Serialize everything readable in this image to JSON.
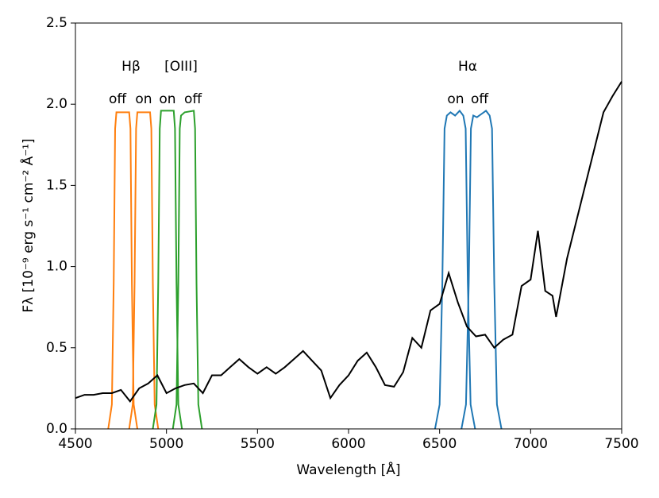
{
  "chart_data": {
    "type": "line",
    "xlabel": "Wavelength [Å]",
    "ylabel": "Fλ [10⁻⁹ erg s⁻¹ cm⁻² Å⁻¹]",
    "annotations": [
      "Hβ",
      "[OIII]",
      "Hα",
      "off",
      "on",
      "on",
      "off",
      "on",
      "off"
    ],
    "xlim": [
      4500,
      7500
    ],
    "xticks": [
      4500,
      5000,
      5500,
      6000,
      6500,
      7000,
      7500
    ],
    "ylim": [
      0,
      2.5
    ],
    "yticks": [
      {
        "value": 0,
        "label": "0.0"
      },
      0.5,
      {
        "value": 1,
        "label": "1.0"
      },
      1.5,
      {
        "value": 2,
        "label": "2.0"
      },
      2.5
    ],
    "series": [
      {
        "color": "#ff7f0e",
        "x": [
          4680,
          4700,
          4710,
          4718,
          4725,
          4795,
          4802,
          4810,
          4820,
          4840
        ],
        "values": [
          0,
          0.15,
          0.9,
          1.85,
          1.95,
          1.95,
          1.85,
          0.9,
          0.15,
          0
        ]
      },
      {
        "color": "#ff7f0e",
        "x": [
          4795,
          4815,
          4825,
          4833,
          4840,
          4910,
          4917,
          4925,
          4935,
          4955
        ],
        "values": [
          0,
          0.15,
          0.9,
          1.85,
          1.95,
          1.95,
          1.85,
          0.9,
          0.15,
          0
        ]
      },
      {
        "color": "#2ca02c",
        "x": [
          4925,
          4945,
          4955,
          4963,
          4970,
          5040,
          5047,
          5055,
          5065,
          5085
        ],
        "values": [
          0,
          0.15,
          0.9,
          1.85,
          1.96,
          1.96,
          1.85,
          0.9,
          0.15,
          0
        ]
      },
      {
        "color": "#2ca02c",
        "x": [
          5035,
          5055,
          5065,
          5073,
          5080,
          5100,
          5150,
          5157,
          5165,
          5175,
          5195
        ],
        "values": [
          0,
          0.15,
          0.9,
          1.85,
          1.93,
          1.95,
          1.96,
          1.85,
          0.9,
          0.15,
          0
        ]
      },
      {
        "color": "#1f77b4",
        "x": [
          6475,
          6500,
          6515,
          6527,
          6540,
          6560,
          6585,
          6610,
          6630,
          6643,
          6655,
          6670,
          6695
        ],
        "values": [
          0,
          0.15,
          0.9,
          1.85,
          1.93,
          1.95,
          1.93,
          1.96,
          1.93,
          1.85,
          0.9,
          0.15,
          0
        ]
      },
      {
        "color": "#1f77b4",
        "x": [
          6620,
          6645,
          6660,
          6672,
          6685,
          6705,
          6730,
          6755,
          6775,
          6788,
          6800,
          6815,
          6840
        ],
        "values": [
          0,
          0.15,
          0.9,
          1.85,
          1.93,
          1.92,
          1.94,
          1.96,
          1.93,
          1.85,
          0.9,
          0.15,
          0
        ]
      },
      {
        "color": "#000000",
        "x": [
          4500,
          4550,
          4600,
          4650,
          4700,
          4750,
          4800,
          4850,
          4900,
          4950,
          5000,
          5050,
          5100,
          5150,
          5200,
          5250,
          5300,
          5350,
          5400,
          5450,
          5500,
          5550,
          5600,
          5650,
          5700,
          5750,
          5800,
          5850,
          5900,
          5950,
          6000,
          6050,
          6100,
          6150,
          6200,
          6250,
          6300,
          6350,
          6400,
          6450,
          6500,
          6550,
          6600,
          6650,
          6700,
          6750,
          6800,
          6850,
          6900,
          6950,
          7000,
          7040,
          7080,
          7120,
          7140,
          7200,
          7300,
          7400,
          7450,
          7500
        ],
        "values": [
          0.19,
          0.21,
          0.21,
          0.22,
          0.22,
          0.24,
          0.17,
          0.25,
          0.28,
          0.33,
          0.22,
          0.25,
          0.27,
          0.28,
          0.22,
          0.33,
          0.33,
          0.38,
          0.43,
          0.38,
          0.34,
          0.38,
          0.34,
          0.38,
          0.43,
          0.48,
          0.42,
          0.36,
          0.19,
          0.27,
          0.33,
          0.42,
          0.47,
          0.38,
          0.27,
          0.26,
          0.35,
          0.56,
          0.5,
          0.73,
          0.77,
          0.96,
          0.78,
          0.63,
          0.57,
          0.58,
          0.5,
          0.55,
          0.58,
          0.88,
          0.92,
          1.22,
          0.85,
          0.82,
          0.69,
          1.05,
          1.5,
          1.95,
          2.05,
          2.14
        ]
      }
    ]
  }
}
